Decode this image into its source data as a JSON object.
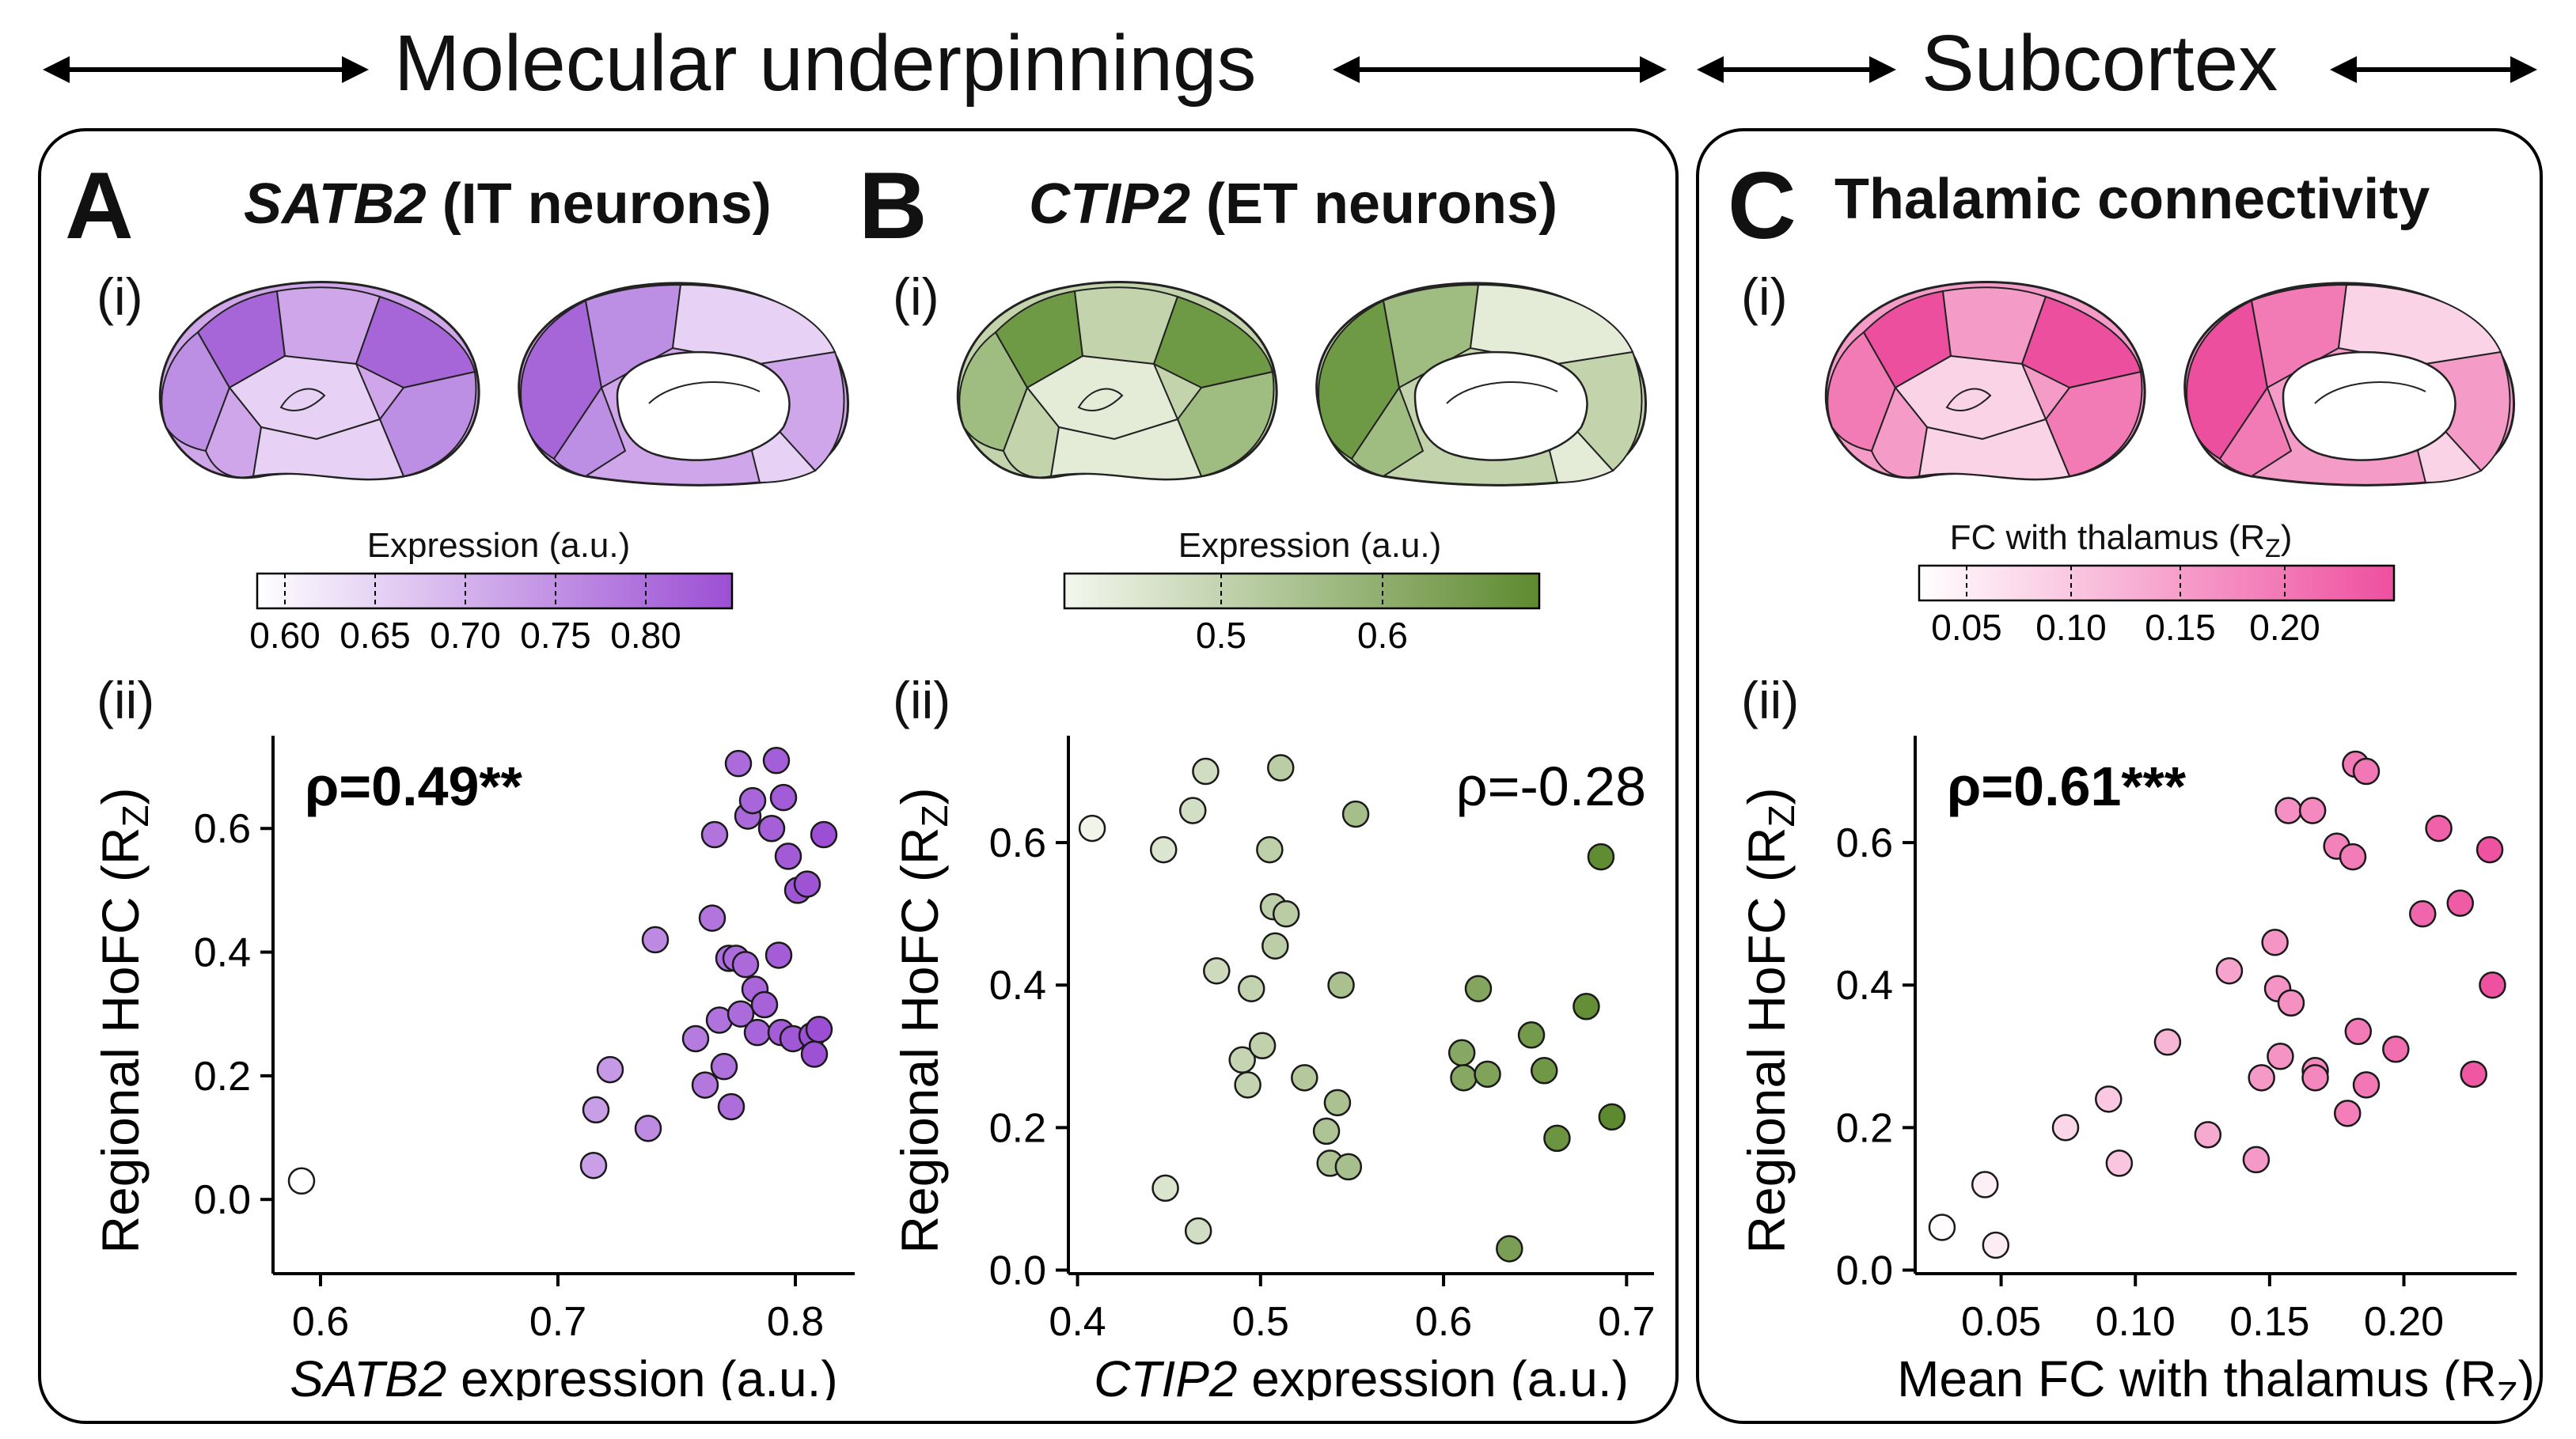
{
  "banner": {
    "left_title": "Molecular underpinnings",
    "right_title": "Subcortex"
  },
  "panels": {
    "A": {
      "letter": "A",
      "title_gene": "SATB2",
      "title_rest": " (IT neurons)",
      "sub_i": "(i)",
      "sub_ii": "(ii)",
      "colorbar": {
        "label": "Expression (a.u.)",
        "ticks": [
          "0.60",
          "0.65",
          "0.70",
          "0.75",
          "0.80"
        ],
        "color_low": "#ffffff",
        "color_high": "#9c4fd4"
      },
      "brain_colors": {
        "base": "#cfa6ea",
        "light": "#e7d2f5",
        "mid": "#bd8fe4",
        "dark": "#a766d8"
      }
    },
    "B": {
      "letter": "B",
      "title_gene": "CTIP2",
      "title_rest": " (ET neurons)",
      "sub_i": "(i)",
      "sub_ii": "(ii)",
      "colorbar": {
        "label": "Expression (a.u.)",
        "ticks": [
          "0.5",
          "0.6"
        ],
        "color_low": "#f4f7ee",
        "color_high": "#5e8a2f"
      },
      "brain_colors": {
        "base": "#c3d4ad",
        "light": "#e4ecd8",
        "mid": "#9fbd80",
        "dark": "#6e9a45"
      }
    },
    "C": {
      "letter": "C",
      "title_rest": "Thalamic connectivity",
      "sub_i": "(i)",
      "sub_ii": "(ii)",
      "colorbar": {
        "label": "FC with thalamus (R",
        "label_sub": "Z",
        "label_end": ")",
        "ticks": [
          "0.05",
          "0.10",
          "0.15",
          "0.20"
        ],
        "color_low": "#ffffff",
        "color_high": "#ee4f9f"
      },
      "brain_colors": {
        "base": "#f59bc8",
        "light": "#fbd3e6",
        "mid": "#f27bb5",
        "dark": "#ec4f9e"
      }
    }
  },
  "chart_data": [
    {
      "type": "scatter",
      "panel": "A",
      "annotation": "ρ=0.49**",
      "annotation_bold": true,
      "xlabel_italic": "SATB2",
      "xlabel_rest": " expression (a.u.)",
      "ylabel": "Regional HoFC (R",
      "ylabel_sub": "Z",
      "ylabel_end": ")",
      "xlim": [
        0.58,
        0.825
      ],
      "ylim": [
        -0.12,
        0.75
      ],
      "xticks": [
        0.6,
        0.7,
        0.8
      ],
      "xtick_labels": [
        "0.6",
        "0.7",
        "0.8"
      ],
      "yticks": [
        0.0,
        0.2,
        0.4,
        0.6
      ],
      "ytick_labels": [
        "0.0",
        "0.2",
        "0.4",
        "0.6"
      ],
      "color_low": "#ffffff",
      "color_high": "#9c4fd4",
      "c_range": [
        0.6,
        0.81
      ],
      "points": [
        {
          "x": 0.592,
          "y": 0.03
        },
        {
          "x": 0.715,
          "y": 0.055
        },
        {
          "x": 0.716,
          "y": 0.145
        },
        {
          "x": 0.722,
          "y": 0.21
        },
        {
          "x": 0.738,
          "y": 0.115
        },
        {
          "x": 0.741,
          "y": 0.42
        },
        {
          "x": 0.758,
          "y": 0.26
        },
        {
          "x": 0.762,
          "y": 0.185
        },
        {
          "x": 0.765,
          "y": 0.455
        },
        {
          "x": 0.766,
          "y": 0.59
        },
        {
          "x": 0.768,
          "y": 0.29
        },
        {
          "x": 0.77,
          "y": 0.215
        },
        {
          "x": 0.772,
          "y": 0.39
        },
        {
          "x": 0.773,
          "y": 0.15
        },
        {
          "x": 0.775,
          "y": 0.39
        },
        {
          "x": 0.776,
          "y": 0.705
        },
        {
          "x": 0.777,
          "y": 0.3
        },
        {
          "x": 0.779,
          "y": 0.38
        },
        {
          "x": 0.78,
          "y": 0.62
        },
        {
          "x": 0.782,
          "y": 0.645
        },
        {
          "x": 0.783,
          "y": 0.34
        },
        {
          "x": 0.784,
          "y": 0.27
        },
        {
          "x": 0.787,
          "y": 0.315
        },
        {
          "x": 0.79,
          "y": 0.6
        },
        {
          "x": 0.792,
          "y": 0.71
        },
        {
          "x": 0.793,
          "y": 0.395
        },
        {
          "x": 0.794,
          "y": 0.27
        },
        {
          "x": 0.795,
          "y": 0.65
        },
        {
          "x": 0.797,
          "y": 0.555
        },
        {
          "x": 0.799,
          "y": 0.26
        },
        {
          "x": 0.801,
          "y": 0.5
        },
        {
          "x": 0.805,
          "y": 0.51
        },
        {
          "x": 0.807,
          "y": 0.265
        },
        {
          "x": 0.808,
          "y": 0.235
        },
        {
          "x": 0.81,
          "y": 0.275
        },
        {
          "x": 0.812,
          "y": 0.59
        }
      ]
    },
    {
      "type": "scatter",
      "panel": "B",
      "annotation": "ρ=-0.28",
      "annotation_bold": false,
      "xlabel_italic": "CTIP2",
      "xlabel_rest": " expression (a.u.)",
      "ylabel": "Regional HoFC (R",
      "ylabel_sub": "Z",
      "ylabel_end": ")",
      "xlim": [
        0.395,
        0.715
      ],
      "ylim": [
        -0.005,
        0.75
      ],
      "xticks": [
        0.4,
        0.5,
        0.6,
        0.7
      ],
      "xtick_labels": [
        "0.4",
        "0.5",
        "0.6",
        "0.7"
      ],
      "yticks": [
        0.0,
        0.2,
        0.4,
        0.6
      ],
      "ytick_labels": [
        "0.0",
        "0.2",
        "0.4",
        "0.6"
      ],
      "color_low": "#f4f7ee",
      "color_high": "#5e8a2f",
      "c_range": [
        0.4,
        0.69
      ],
      "points": [
        {
          "x": 0.408,
          "y": 0.62
        },
        {
          "x": 0.447,
          "y": 0.59
        },
        {
          "x": 0.448,
          "y": 0.115
        },
        {
          "x": 0.463,
          "y": 0.645
        },
        {
          "x": 0.466,
          "y": 0.055
        },
        {
          "x": 0.47,
          "y": 0.7
        },
        {
          "x": 0.476,
          "y": 0.42
        },
        {
          "x": 0.49,
          "y": 0.295
        },
        {
          "x": 0.493,
          "y": 0.26
        },
        {
          "x": 0.495,
          "y": 0.395
        },
        {
          "x": 0.501,
          "y": 0.315
        },
        {
          "x": 0.505,
          "y": 0.59
        },
        {
          "x": 0.507,
          "y": 0.51
        },
        {
          "x": 0.508,
          "y": 0.455
        },
        {
          "x": 0.511,
          "y": 0.705
        },
        {
          "x": 0.514,
          "y": 0.5
        },
        {
          "x": 0.524,
          "y": 0.27
        },
        {
          "x": 0.536,
          "y": 0.195
        },
        {
          "x": 0.538,
          "y": 0.15
        },
        {
          "x": 0.542,
          "y": 0.235
        },
        {
          "x": 0.544,
          "y": 0.4
        },
        {
          "x": 0.548,
          "y": 0.145
        },
        {
          "x": 0.552,
          "y": 0.64
        },
        {
          "x": 0.61,
          "y": 0.305
        },
        {
          "x": 0.611,
          "y": 0.27
        },
        {
          "x": 0.619,
          "y": 0.395
        },
        {
          "x": 0.624,
          "y": 0.275
        },
        {
          "x": 0.636,
          "y": 0.03
        },
        {
          "x": 0.648,
          "y": 0.33
        },
        {
          "x": 0.655,
          "y": 0.28
        },
        {
          "x": 0.662,
          "y": 0.185
        },
        {
          "x": 0.678,
          "y": 0.37
        },
        {
          "x": 0.686,
          "y": 0.58
        },
        {
          "x": 0.692,
          "y": 0.215
        }
      ]
    },
    {
      "type": "scatter",
      "panel": "C",
      "annotation": "ρ=0.61***",
      "annotation_bold": true,
      "xlabel_italic": "",
      "xlabel_rest": "Mean FC with thalamus (R",
      "xlabel_sub": "Z",
      "xlabel_end": ")",
      "ylabel": "Regional HoFC (R",
      "ylabel_sub": "Z",
      "ylabel_end": ")",
      "xlim": [
        0.018,
        0.242
      ],
      "ylim": [
        -0.005,
        0.75
      ],
      "xticks": [
        0.05,
        0.1,
        0.15,
        0.2
      ],
      "xtick_labels": [
        "0.05",
        "0.10",
        "0.15",
        "0.20"
      ],
      "yticks": [
        0.0,
        0.2,
        0.4,
        0.6
      ],
      "ytick_labels": [
        "0.0",
        "0.2",
        "0.4",
        "0.6"
      ],
      "color_low": "#ffffff",
      "color_high": "#ee4f9f",
      "c_range": [
        0.025,
        0.235
      ],
      "points": [
        {
          "x": 0.028,
          "y": 0.06
        },
        {
          "x": 0.044,
          "y": 0.12
        },
        {
          "x": 0.048,
          "y": 0.035
        },
        {
          "x": 0.074,
          "y": 0.2
        },
        {
          "x": 0.09,
          "y": 0.24
        },
        {
          "x": 0.094,
          "y": 0.15
        },
        {
          "x": 0.112,
          "y": 0.32
        },
        {
          "x": 0.127,
          "y": 0.19
        },
        {
          "x": 0.135,
          "y": 0.42
        },
        {
          "x": 0.145,
          "y": 0.155
        },
        {
          "x": 0.147,
          "y": 0.27
        },
        {
          "x": 0.152,
          "y": 0.46
        },
        {
          "x": 0.153,
          "y": 0.395
        },
        {
          "x": 0.154,
          "y": 0.3
        },
        {
          "x": 0.157,
          "y": 0.645
        },
        {
          "x": 0.158,
          "y": 0.375
        },
        {
          "x": 0.166,
          "y": 0.645
        },
        {
          "x": 0.167,
          "y": 0.28
        },
        {
          "x": 0.167,
          "y": 0.27
        },
        {
          "x": 0.175,
          "y": 0.595
        },
        {
          "x": 0.179,
          "y": 0.22
        },
        {
          "x": 0.181,
          "y": 0.58
        },
        {
          "x": 0.182,
          "y": 0.71
        },
        {
          "x": 0.183,
          "y": 0.335
        },
        {
          "x": 0.186,
          "y": 0.7
        },
        {
          "x": 0.186,
          "y": 0.26
        },
        {
          "x": 0.197,
          "y": 0.31
        },
        {
          "x": 0.207,
          "y": 0.5
        },
        {
          "x": 0.213,
          "y": 0.62
        },
        {
          "x": 0.221,
          "y": 0.515
        },
        {
          "x": 0.226,
          "y": 0.275
        },
        {
          "x": 0.232,
          "y": 0.59
        },
        {
          "x": 0.233,
          "y": 0.4
        }
      ]
    }
  ]
}
